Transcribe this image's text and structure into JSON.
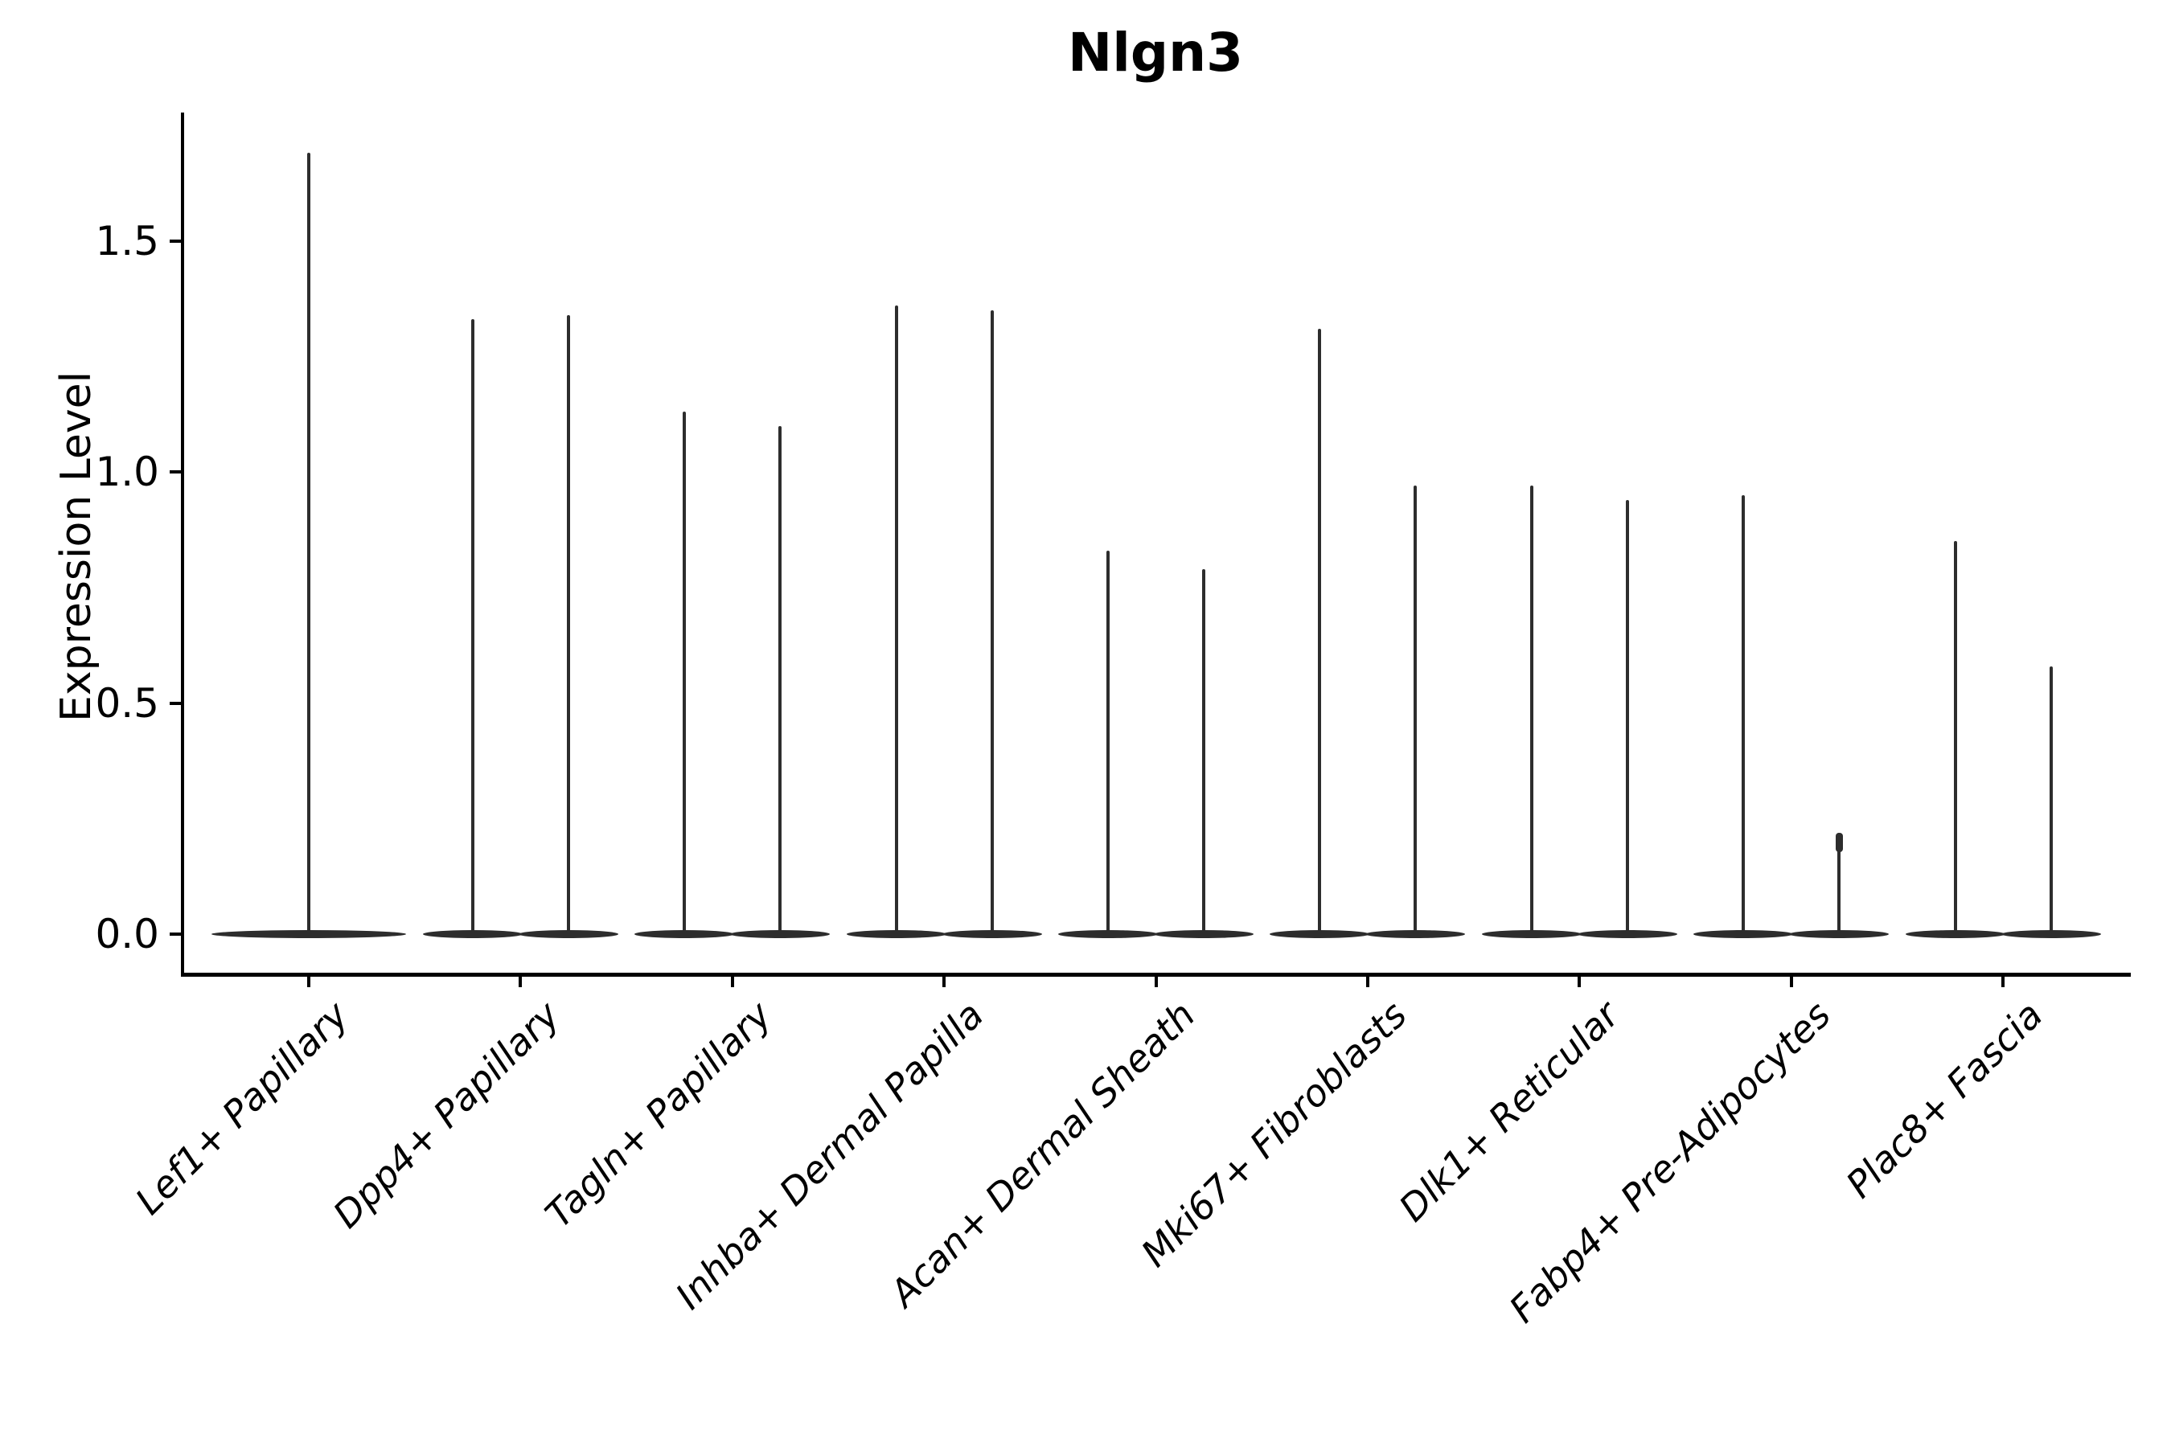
{
  "title": "Nlgn3",
  "axes": {
    "ylabel": "Expression Level",
    "ytick_labels": [
      "0.0",
      "0.5",
      "1.0",
      "1.5"
    ]
  },
  "colors": {
    "ink": "#000000",
    "violin": "#2d2d2d",
    "background": "#ffffff"
  },
  "chart_data": {
    "type": "violin",
    "title": "Nlgn3",
    "xlabel": "",
    "ylabel": "Expression Level",
    "yticks": [
      0.0,
      0.5,
      1.0,
      1.5
    ],
    "ylim": [
      -0.08,
      1.78
    ],
    "grid": false,
    "legend": "none",
    "categories": [
      "Lef1+ Papillary",
      "Dpp4+ Papillary",
      "Tagln+ Papillary",
      "Inhba+ Dermal Papilla",
      "Acan+ Dermal Sheath",
      "Mki67+ Fibroblasts",
      "Dlk1+ Reticular",
      "Fabp4+ Pre-Adipocytes",
      "Plac8+ Fascia"
    ],
    "description": "Each violin collapses to a flat disc at expression 0 with a thin central spike reaching the maximum expression value; most categories contain two side-by-side violins, the first category a single full-width violin.",
    "series": [
      {
        "category": "Lef1+ Papillary",
        "violins": [
          {
            "max": 1.69
          }
        ]
      },
      {
        "category": "Dpp4+ Papillary",
        "violins": [
          {
            "max": 1.33
          },
          {
            "max": 1.34
          }
        ]
      },
      {
        "category": "Tagln+ Papillary",
        "violins": [
          {
            "max": 1.13
          },
          {
            "max": 1.1
          }
        ]
      },
      {
        "category": "Inhba+ Dermal Papilla",
        "violins": [
          {
            "max": 1.36
          },
          {
            "max": 1.35
          }
        ]
      },
      {
        "category": "Acan+ Dermal Sheath",
        "violins": [
          {
            "max": 0.83
          },
          {
            "max": 0.79
          }
        ]
      },
      {
        "category": "Mki67+ Fibroblasts",
        "violins": [
          {
            "max": 1.31
          },
          {
            "max": 0.97
          }
        ]
      },
      {
        "category": "Dlk1+ Reticular",
        "violins": [
          {
            "max": 0.97
          },
          {
            "max": 0.94
          }
        ]
      },
      {
        "category": "Fabp4+ Pre-Adipocytes",
        "violins": [
          {
            "max": 0.95
          },
          {
            "max": 0.22,
            "tip_bulge": true
          }
        ]
      },
      {
        "category": "Plac8+ Fascia",
        "violins": [
          {
            "max": 0.85
          },
          {
            "max": 0.58
          }
        ]
      }
    ],
    "baseline_value": 0
  }
}
